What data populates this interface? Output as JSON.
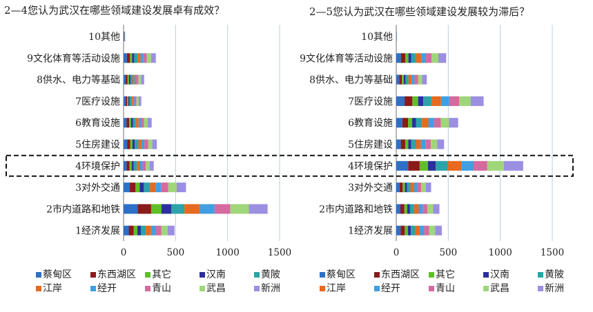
{
  "chart_data": [
    {
      "type": "bar",
      "orientation": "horizontal",
      "stacked": true,
      "title": "2—4您认为武汉在哪些领域建设发展卓有成效？",
      "xlim": [
        0,
        1500
      ],
      "xticks": [
        0,
        500,
        1000,
        1500
      ],
      "grid": true,
      "legend": "bottom",
      "categories": [
        "10其他",
        "9文化体育等活动设施",
        "8供水、电力等基础",
        "7医疗设施",
        "6教育设施",
        "5住房建设",
        "4环境保护",
        "3对外交通",
        "2市内道路和地铁",
        "1经济发展"
      ],
      "highlight_category": "4环境保护",
      "series": [
        {
          "name": "蔡甸区",
          "values": [
            2,
            32,
            20,
            18,
            28,
            34,
            30,
            60,
            135,
            50
          ]
        },
        {
          "name": "东西湖区",
          "values": [
            1,
            30,
            18,
            16,
            26,
            30,
            28,
            55,
            130,
            48
          ]
        },
        {
          "name": "其它",
          "values": [
            1,
            20,
            14,
            12,
            18,
            22,
            20,
            40,
            100,
            35
          ]
        },
        {
          "name": "汉南",
          "values": [
            1,
            20,
            14,
            12,
            18,
            22,
            20,
            40,
            95,
            33
          ]
        },
        {
          "name": "黄陂",
          "values": [
            2,
            32,
            20,
            18,
            28,
            34,
            30,
            60,
            125,
            48
          ]
        },
        {
          "name": "江岸",
          "values": [
            1,
            30,
            18,
            16,
            26,
            30,
            28,
            55,
            150,
            50
          ]
        },
        {
          "name": "经开",
          "values": [
            1,
            26,
            16,
            14,
            22,
            28,
            26,
            50,
            140,
            45
          ]
        },
        {
          "name": "青山",
          "values": [
            1,
            34,
            22,
            18,
            30,
            36,
            32,
            70,
            150,
            55
          ]
        },
        {
          "name": "武昌",
          "values": [
            1,
            40,
            26,
            22,
            34,
            40,
            36,
            80,
            180,
            60
          ]
        },
        {
          "name": "新洲",
          "values": [
            3,
            46,
            30,
            24,
            40,
            44,
            40,
            90,
            180,
            66
          ]
        }
      ]
    },
    {
      "type": "bar",
      "orientation": "horizontal",
      "stacked": true,
      "title": "2—5您认为武汉在哪些领域建设发展较为滞后？",
      "xlim": [
        0,
        1500
      ],
      "xticks": [
        0,
        500,
        1000,
        1500
      ],
      "grid": true,
      "legend": "bottom",
      "categories": [
        "10其他",
        "9文化体育等活动设施",
        "8供水、电力等基础",
        "7医疗设施",
        "6教育设施",
        "5住房建设",
        "4环境保护",
        "3对外交通",
        "2市内道路和地铁",
        "1经济发展"
      ],
      "highlight_category": "4环境保护",
      "series": [
        {
          "name": "蔡甸区",
          "values": [
            1,
            45,
            28,
            80,
            58,
            44,
            115,
            32,
            40,
            42
          ]
        },
        {
          "name": "东西湖区",
          "values": [
            0,
            42,
            26,
            75,
            55,
            42,
            110,
            30,
            38,
            40
          ]
        },
        {
          "name": "其它",
          "values": [
            0,
            30,
            18,
            55,
            40,
            30,
            80,
            22,
            28,
            30
          ]
        },
        {
          "name": "汉南",
          "values": [
            0,
            28,
            17,
            50,
            36,
            28,
            75,
            20,
            26,
            28
          ]
        },
        {
          "name": "黄陂",
          "values": [
            1,
            45,
            28,
            80,
            58,
            45,
            115,
            32,
            40,
            42
          ]
        },
        {
          "name": "江岸",
          "values": [
            0,
            50,
            30,
            90,
            62,
            48,
            130,
            36,
            44,
            46
          ]
        },
        {
          "name": "经开",
          "values": [
            0,
            45,
            28,
            80,
            55,
            44,
            115,
            30,
            38,
            40
          ]
        },
        {
          "name": "青山",
          "values": [
            0,
            55,
            34,
            95,
            65,
            52,
            135,
            38,
            46,
            48
          ]
        },
        {
          "name": "武昌",
          "values": [
            1,
            65,
            40,
            110,
            78,
            60,
            160,
            45,
            55,
            58
          ]
        },
        {
          "name": "新洲",
          "values": [
            1,
            75,
            45,
            125,
            88,
            67,
            185,
            50,
            60,
            64
          ]
        }
      ]
    }
  ],
  "colors": [
    "#2e6fc7",
    "#8b1a1a",
    "#5fbf2a",
    "#2b2f9e",
    "#2ba3a8",
    "#e66a1f",
    "#3f9fe0",
    "#d46aa0",
    "#9fd67a",
    "#9a8fe0"
  ]
}
